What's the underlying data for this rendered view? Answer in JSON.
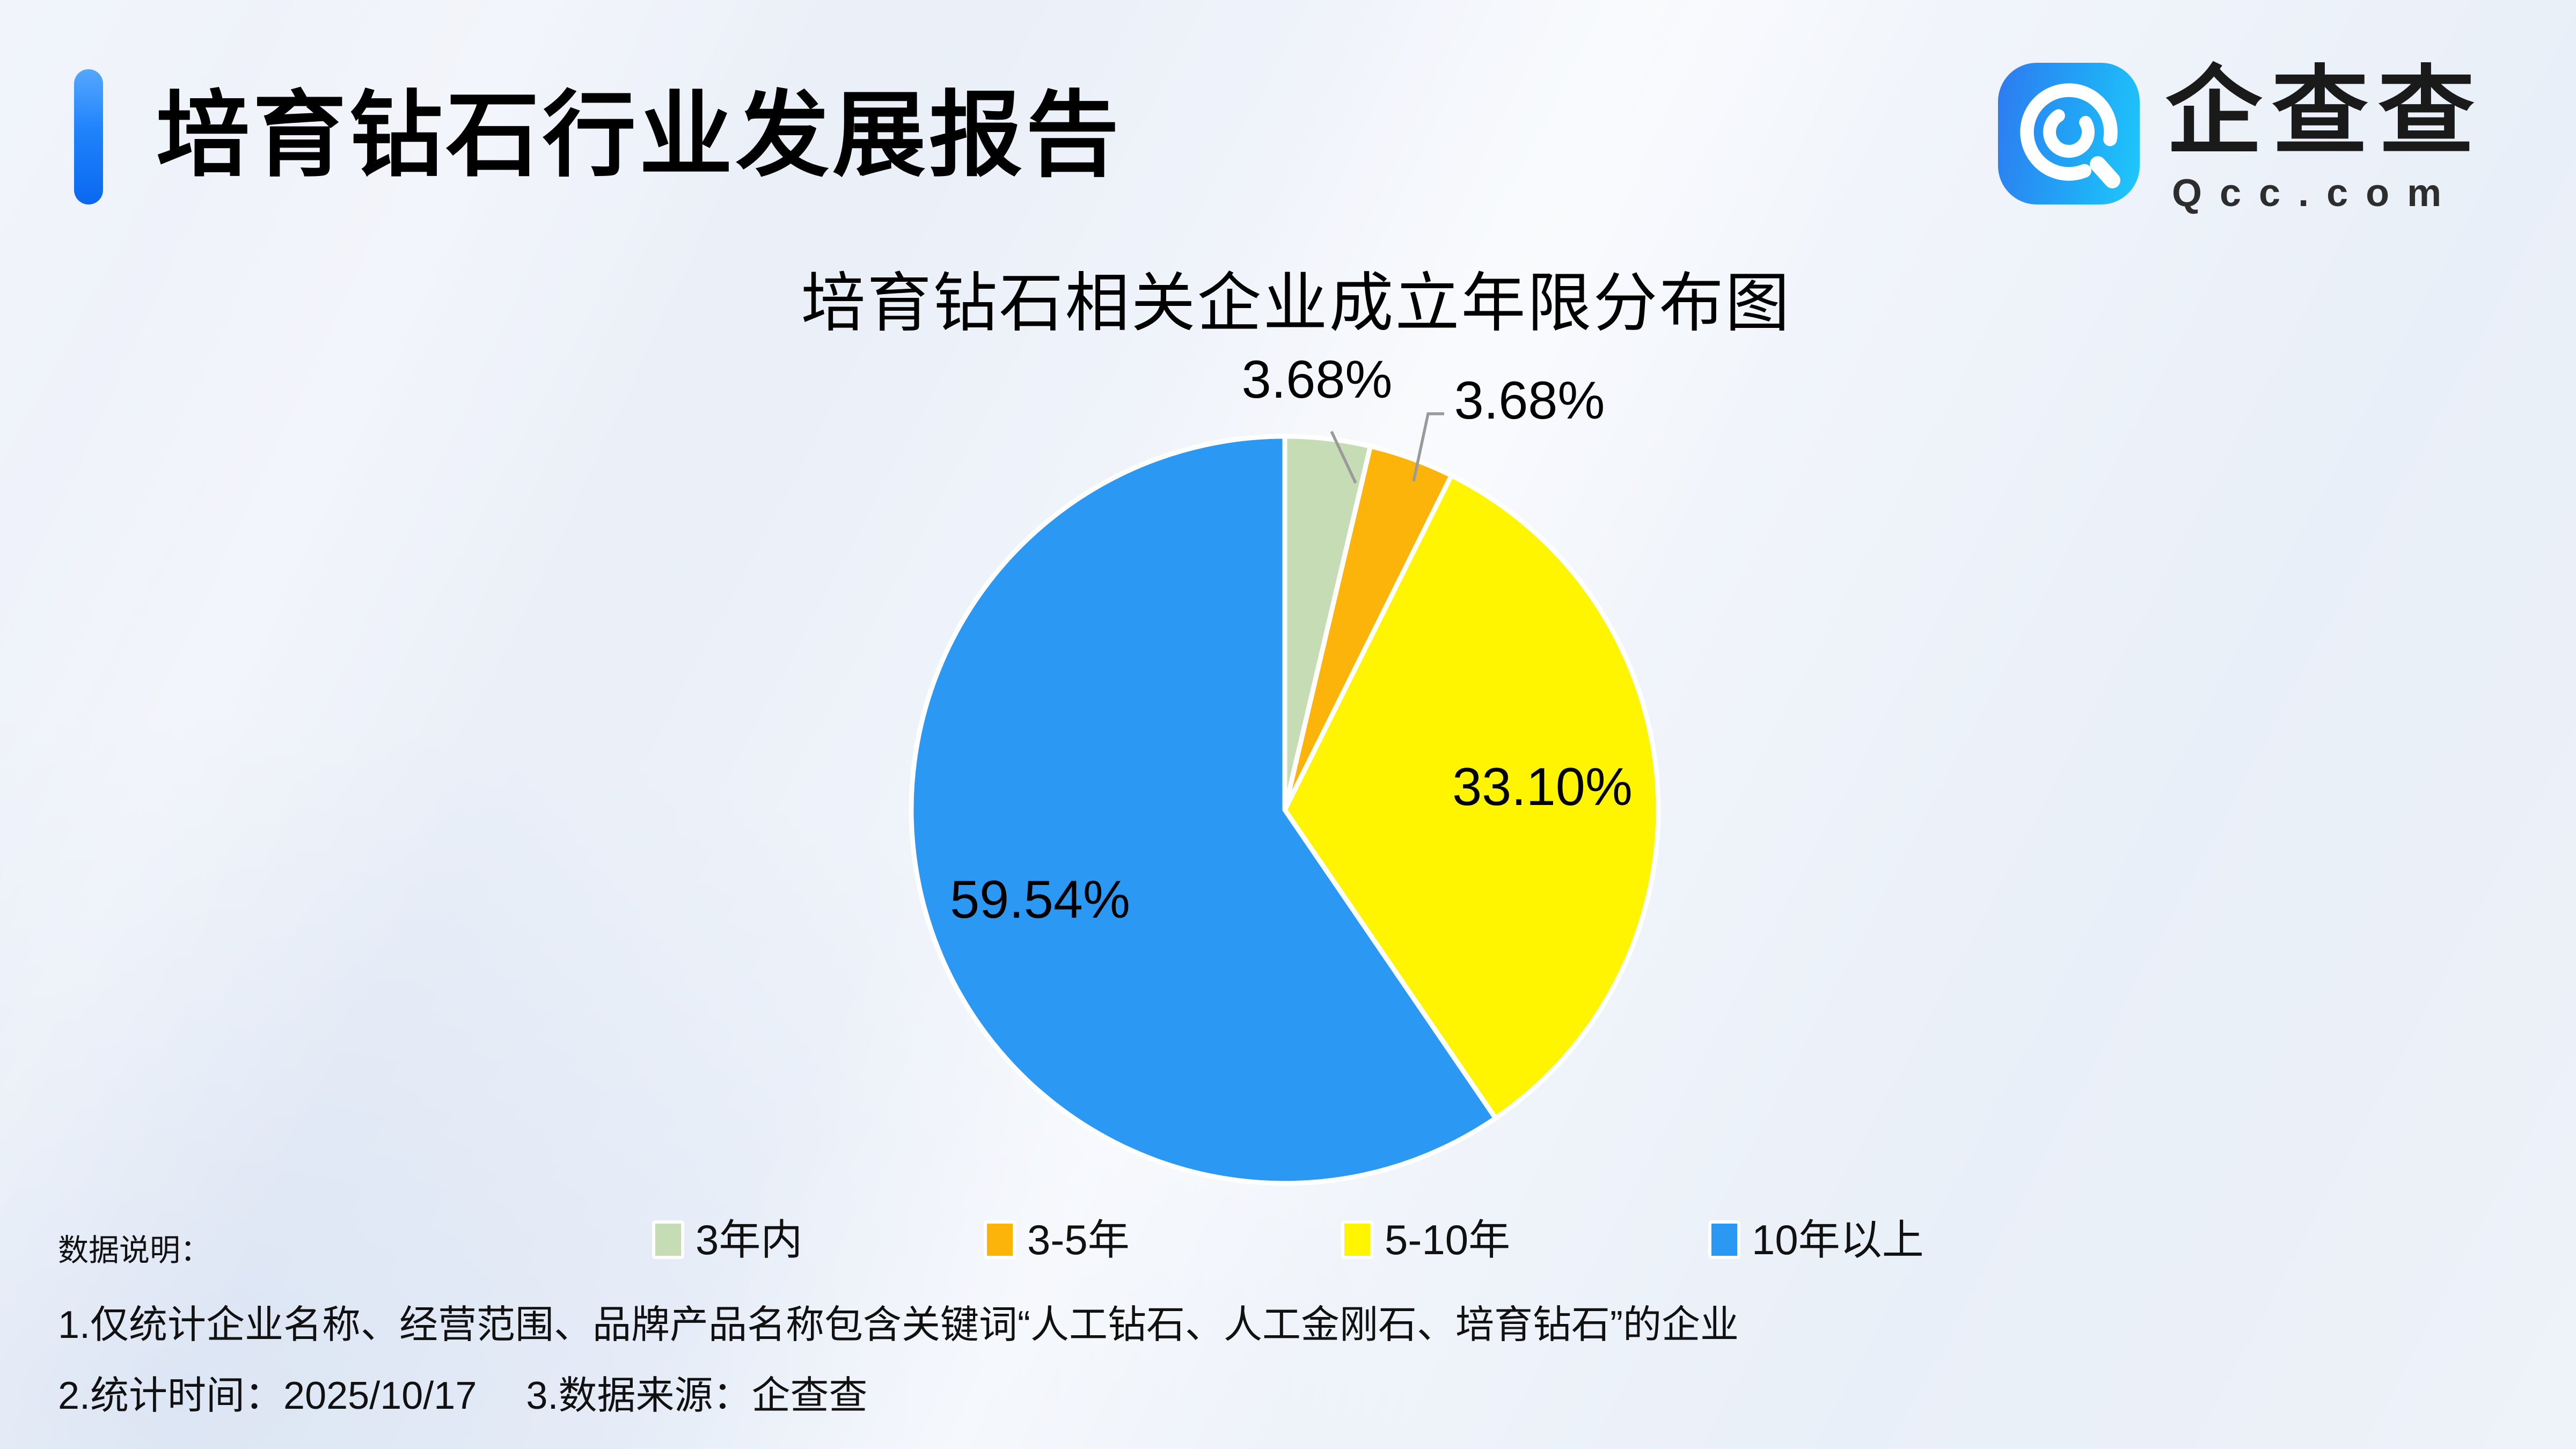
{
  "header": {
    "title": "培育钻石行业发展报告",
    "accent_color": "#0a68f0"
  },
  "logo": {
    "icon": "qcc-spiral-q-icon",
    "name": "企查查",
    "domain": "Qcc.com",
    "tile_color_start": "#2e7af0",
    "tile_color_end": "#1ec9fb"
  },
  "chart_data": {
    "type": "pie",
    "title": "培育钻石相关企业成立年限分布图",
    "categories": [
      "3年内",
      "3-5年",
      "5-10年",
      "10年以上"
    ],
    "values": [
      3.68,
      3.68,
      33.1,
      59.54
    ],
    "unit": "%",
    "slice_labels": [
      "3.68%",
      "3.68%",
      "33.10%",
      "59.54%"
    ],
    "colors": [
      "#c6dcb5",
      "#fcb40a",
      "#fff500",
      "#2b98f4"
    ],
    "start_angle_deg": 0,
    "direction": "clockwise",
    "slice_border_color": "#ffffff",
    "label_line_color": "#9a9a9a",
    "legend_position": "bottom"
  },
  "footer": {
    "heading": "数据说明：",
    "note1": "1.仅统计企业名称、经营范围、品牌产品名称包含关键词“人工钻石、人工金刚石、培育钻石”的企业",
    "note2": "2.统计时间：2025/10/17　 3.数据来源：企查查"
  }
}
